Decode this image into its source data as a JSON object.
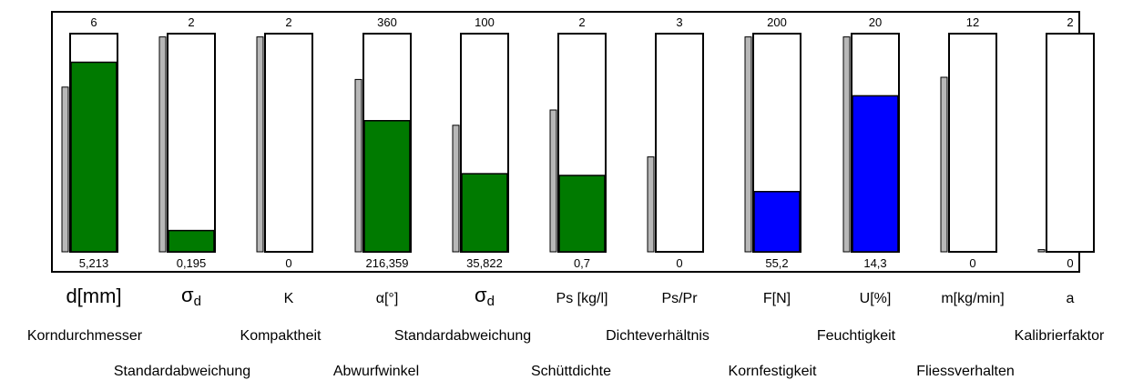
{
  "chart_data": {
    "type": "bar",
    "columns": [
      {
        "symbol": "d[mm]",
        "max": "6",
        "value": "5,213",
        "fill": 0.8688,
        "ghost": 0.88,
        "color": "#007a00"
      },
      {
        "symbol": "σd",
        "max": "2",
        "value": "0,195",
        "fill": 0.0975,
        "ghost": 0.985,
        "color": "#007a00"
      },
      {
        "symbol": "K",
        "max": "2",
        "value": "0",
        "fill": 0,
        "ghost": 0.985,
        "color": "#007a00"
      },
      {
        "symbol": "α[°]",
        "max": "360",
        "value": "216,359",
        "fill": 0.601,
        "ghost": 0.79,
        "color": "#007a00"
      },
      {
        "symbol": "σd",
        "max": "100",
        "value": "35,822",
        "fill": 0.358,
        "ghost": 0.58,
        "color": "#007a00"
      },
      {
        "symbol": "Ps [kg/l]",
        "max": "2",
        "value": "0,7",
        "fill": 0.35,
        "ghost": 0.65,
        "color": "#007a00"
      },
      {
        "symbol": "Ps/Pr",
        "max": "3",
        "value": "0",
        "fill": 0,
        "ghost": 0.435,
        "color": "#007a00"
      },
      {
        "symbol": "F[N]",
        "max": "200",
        "value": "55,2",
        "fill": 0.276,
        "ghost": 0.985,
        "color": "#0000ff"
      },
      {
        "symbol": "U[%]",
        "max": "20",
        "value": "14,3",
        "fill": 0.715,
        "ghost": 0.985,
        "color": "#0000ff"
      },
      {
        "symbol": "m[kg/min]",
        "max": "12",
        "value": "0",
        "fill": 0,
        "ghost": 0.8,
        "color": "#007a00"
      },
      {
        "symbol": "a",
        "max": "2",
        "value": "0",
        "fill": 0,
        "ghost": 0.01,
        "color": "#007a00"
      }
    ],
    "legend_row1": [
      "Korndurchmesser",
      "Kompaktheit",
      "Standardabweichung",
      "Dichteverhältnis",
      "Feuchtigkeit",
      "Kalibrierfaktor"
    ],
    "legend_row2": [
      "Standardabweichung",
      "Abwurfwinkel",
      "Schüttdichte",
      "Kornfestigkeit",
      "Fliessverhalten"
    ]
  }
}
